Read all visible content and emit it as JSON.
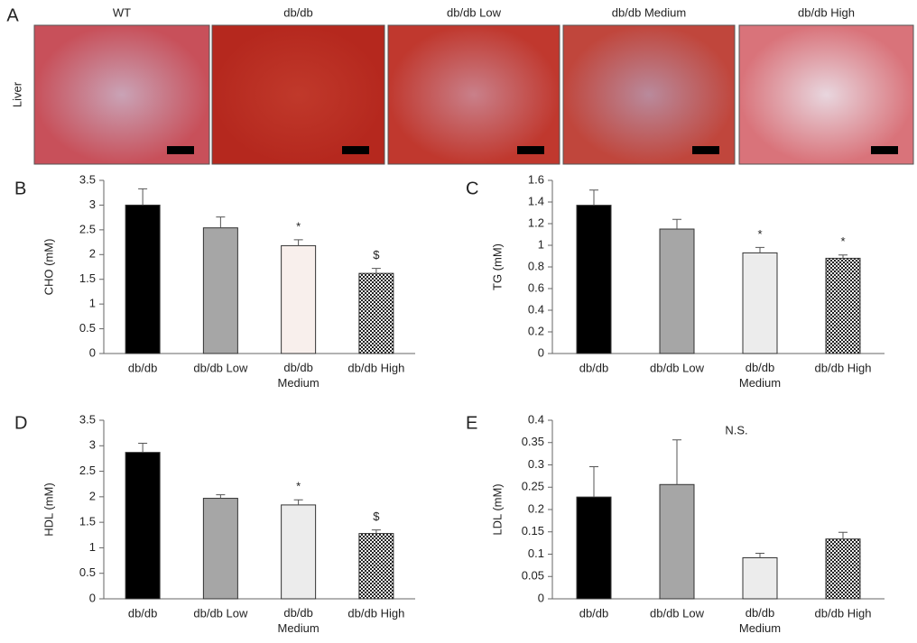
{
  "figure": {
    "label": "A",
    "row_label": "Liver",
    "columns": [
      "WT",
      "db/db",
      "db/db Low",
      "db/db Medium",
      "db/db High"
    ]
  },
  "chart_data": [
    {
      "type": "bar",
      "panel": "B",
      "ylabel": "CHO (mM)",
      "categories": [
        "db/db",
        "db/db Low",
        "db/db Medium",
        "db/db High"
      ],
      "values": [
        3.0,
        2.54,
        2.18,
        1.62
      ],
      "errors": [
        0.33,
        0.22,
        0.12,
        0.1
      ],
      "markers": [
        null,
        null,
        "*",
        "$"
      ],
      "colors": [
        "#000000",
        "#a6a6a6",
        "#f8efec",
        "#3a3a3a"
      ],
      "patterns": [
        null,
        null,
        null,
        "checker"
      ],
      "ylim": [
        0,
        3.5
      ],
      "yticks": [
        0,
        0.5,
        1,
        1.5,
        2,
        2.5,
        3,
        3.5
      ]
    },
    {
      "type": "bar",
      "panel": "C",
      "ylabel": "TG (mM)",
      "categories": [
        "db/db",
        "db/db Low",
        "db/db Medium",
        "db/db High"
      ],
      "values": [
        1.37,
        1.15,
        0.93,
        0.88
      ],
      "errors": [
        0.14,
        0.09,
        0.05,
        0.03
      ],
      "markers": [
        null,
        null,
        "*",
        "*"
      ],
      "colors": [
        "#000000",
        "#a6a6a6",
        "#ececec",
        "#3a3a3a"
      ],
      "patterns": [
        null,
        null,
        null,
        "checker"
      ],
      "ylim": [
        0,
        1.6
      ],
      "yticks": [
        0,
        0.2,
        0.4,
        0.6,
        0.8,
        1,
        1.2,
        1.4,
        1.6
      ]
    },
    {
      "type": "bar",
      "panel": "D",
      "ylabel": "HDL (mM)",
      "categories": [
        "db/db",
        "db/db Low",
        "db/db Medium",
        "db/db High"
      ],
      "values": [
        2.87,
        1.97,
        1.84,
        1.28
      ],
      "errors": [
        0.18,
        0.07,
        0.1,
        0.07
      ],
      "markers": [
        null,
        null,
        "*",
        "$"
      ],
      "colors": [
        "#000000",
        "#a6a6a6",
        "#ececec",
        "#3a3a3a"
      ],
      "patterns": [
        null,
        null,
        null,
        "checker"
      ],
      "ylim": [
        0,
        3.5
      ],
      "yticks": [
        0,
        0.5,
        1,
        1.5,
        2,
        2.5,
        3,
        3.5
      ]
    },
    {
      "type": "bar",
      "panel": "E",
      "ylabel": "LDL (mM)",
      "annotation": "N.S.",
      "categories": [
        "db/db",
        "db/db Low",
        "db/db Medium",
        "db/db High"
      ],
      "values": [
        0.228,
        0.256,
        0.092,
        0.134
      ],
      "errors": [
        0.068,
        0.1,
        0.01,
        0.015
      ],
      "markers": [
        null,
        null,
        null,
        null
      ],
      "colors": [
        "#000000",
        "#a6a6a6",
        "#ececec",
        "#3a3a3a"
      ],
      "patterns": [
        null,
        null,
        null,
        "checker"
      ],
      "ylim": [
        0,
        0.4
      ],
      "yticks": [
        0,
        0.05,
        0.1,
        0.15,
        0.2,
        0.25,
        0.3,
        0.35,
        0.4
      ]
    }
  ]
}
